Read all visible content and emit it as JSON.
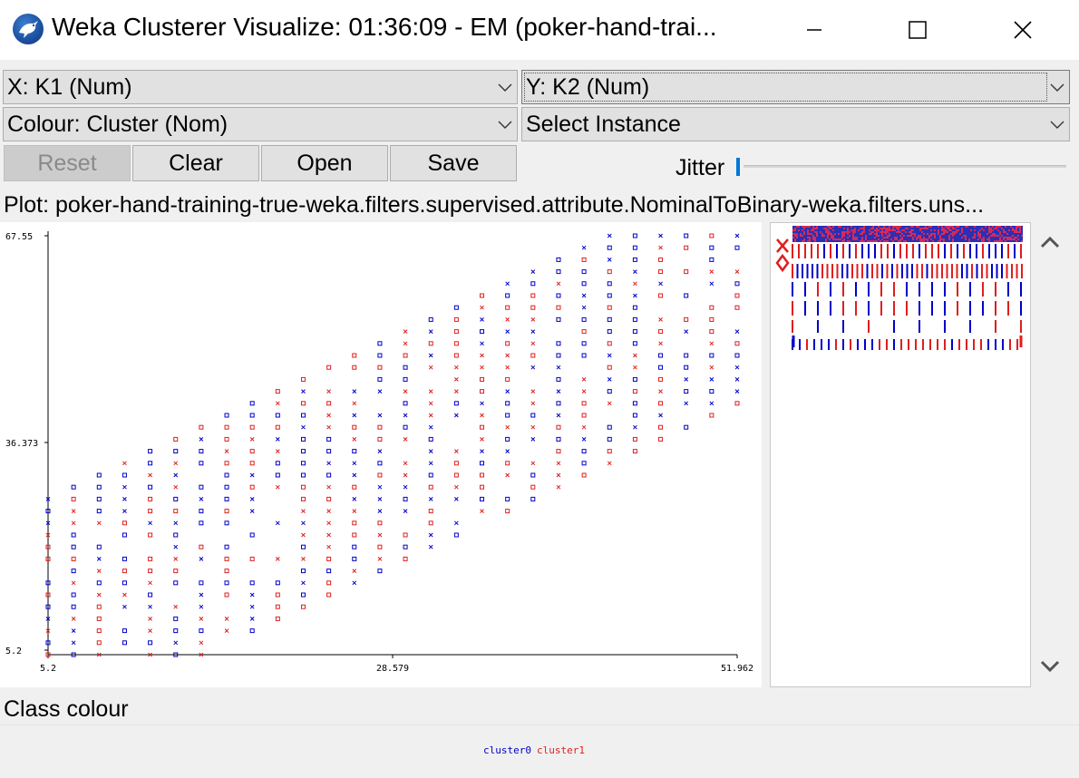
{
  "window": {
    "title": "Weka Clusterer Visualize: 01:36:09 - EM (poker-hand-trai..."
  },
  "controls": {
    "x_axis": "X: K1 (Num)",
    "y_axis": "Y: K2 (Num)",
    "colour": "Colour: Cluster (Nom)",
    "select_instance": "Select Instance",
    "buttons": {
      "reset": "Reset",
      "clear": "Clear",
      "open": "Open",
      "save": "Save"
    },
    "jitter_label": "Jitter",
    "jitter_value": 0
  },
  "plot": {
    "title": "Plot: poker-hand-training-true-weka.filters.supervised.attribute.NominalToBinary-weka.filters.uns..."
  },
  "chart_data": {
    "type": "scatter",
    "x_ticks": [
      "5.2",
      "28.579",
      "51.962"
    ],
    "y_ticks": [
      "67.55",
      "36.373",
      "5.2"
    ],
    "xlim": [
      5.2,
      51.962
    ],
    "ylim": [
      5.2,
      67.55
    ],
    "legend_position": "bottom",
    "series": [
      {
        "name": "cluster0",
        "color": "#0000c8"
      },
      {
        "name": "cluster1",
        "color": "#e01e1e"
      }
    ],
    "marker_shapes": [
      "square",
      "x"
    ],
    "grid": false
  },
  "class_colour": {
    "label": "Class colour",
    "entries": [
      {
        "name": "cluster0",
        "color": "#0000c8"
      },
      {
        "name": "cluster1",
        "color": "#e01e1e"
      }
    ]
  },
  "icons": {
    "app": "weka-bird-icon",
    "minimize": "minimize-icon",
    "maximize": "maximize-icon",
    "close": "close-icon",
    "combo_arrow": "chevron-down-icon",
    "scroll_up": "chevron-up-icon",
    "scroll_down": "chevron-down-icon"
  }
}
